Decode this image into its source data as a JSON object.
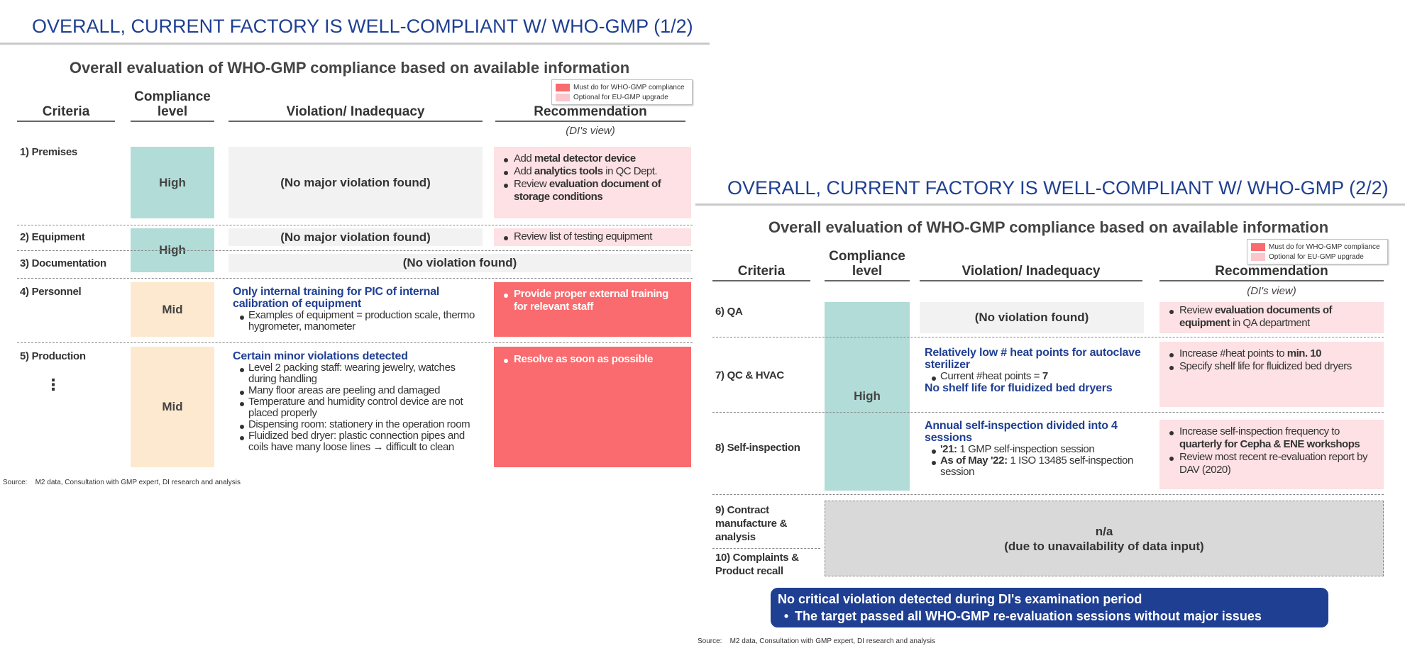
{
  "slide1": {
    "title": "OVERALL, CURRENT FACTORY IS WELL-COMPLIANT W/ WHO-GMP (1/2)",
    "subtitle": "Overall evaluation of WHO-GMP compliance based on available information",
    "legend": {
      "must": "Must do for WHO-GMP compliance",
      "optional": "Optional for EU-GMP upgrade"
    },
    "headers": {
      "criteria": "Criteria",
      "compliance": "Compliance level",
      "violation": "Violation/ Inadequacy",
      "recommendation": "Recommendation"
    },
    "rec_note": "(DI's view)",
    "rows": {
      "premises": {
        "criteria": "1) Premises",
        "level": "High",
        "violation": "(No major violation found)",
        "recs": [
          {
            "pre": "Add ",
            "bold": "metal detector device",
            "post": ""
          },
          {
            "pre": "Add ",
            "bold": "analytics tools",
            "post": " in QC Dept."
          },
          {
            "pre": "Review ",
            "bold": "evaluation document of storage conditions",
            "post": ""
          }
        ]
      },
      "equipment": {
        "criteria": "2) Equipment",
        "violation": "(No major violation found)",
        "rec": "Review list of testing equipment"
      },
      "shared_level": "High",
      "documentation": {
        "criteria": "3) Documentation",
        "violation": "(No violation found)"
      },
      "personnel": {
        "criteria": "4) Personnel",
        "level": "Mid",
        "violation_head": "Only internal training for PIC of internal calibration of equipment",
        "violation_items": [
          "Examples of equipment =  production scale, thermo hygrometer, manometer"
        ],
        "rec": "Provide proper external training for relevant staff"
      },
      "production": {
        "criteria": "5) Production",
        "ellipsis": "⋮",
        "level": "Mid",
        "violation_head": "Certain minor violations detected",
        "violation_items": [
          "Level 2 packing staff: wearing jewelry, watches during handling",
          "Many floor areas are peeling and damaged",
          "Temperature and humidity control device are not placed properly",
          "Dispensing room: stationery in the operation room",
          "Fluidized bed dryer: plastic connection pipes and coils have many loose lines → difficult to clean"
        ],
        "rec": "Resolve as soon as possible"
      }
    },
    "source_label": "Source:",
    "source": "M2 data, Consultation with GMP expert, DI research and analysis"
  },
  "slide2": {
    "title": "OVERALL, CURRENT FACTORY IS WELL-COMPLIANT W/ WHO-GMP (2/2)",
    "subtitle": "Overall evaluation of WHO-GMP compliance based on available information",
    "legend": {
      "must": "Must do for WHO-GMP compliance",
      "optional": "Optional for EU-GMP upgrade"
    },
    "headers": {
      "criteria": "Criteria",
      "compliance": "Compliance level",
      "violation": "Violation/ Inadequacy",
      "recommendation": "Recommendation"
    },
    "rec_note": "(DI's view)",
    "level": "High",
    "rows": {
      "qa": {
        "criteria": "6) QA",
        "violation": "(No violation found)",
        "rec": {
          "pre": "Review ",
          "bold": "evaluation documents of equipment",
          "post": " in QA department"
        }
      },
      "qc": {
        "criteria": "7) QC & HVAC",
        "violation_head": "Relatively low # heat points for autoclave sterilizer",
        "violation_item": {
          "pre": "Current #heat points = ",
          "bold": "7"
        },
        "violation_head2": "No shelf life for fluidized bed dryers",
        "recs": [
          {
            "pre": "Increase #heat points  to ",
            "bold": "min. 10",
            "post": ""
          },
          {
            "pre": "Specify shelf life for fluidized bed dryers",
            "bold": "",
            "post": ""
          }
        ]
      },
      "self": {
        "criteria": "8) Self-inspection",
        "violation_head": "Annual self-inspection divided into 4 sessions",
        "violation_items": [
          {
            "bold": "'21:",
            "post": " 1 GMP self-inspection session"
          },
          {
            "bold": "As of May '22:",
            "post": " 1 ISO 13485 self-inspection session"
          }
        ],
        "recs": [
          {
            "pre": "Increase self-inspection frequency to ",
            "bold": "quarterly for Cepha & ENE workshops",
            "post": ""
          },
          {
            "pre": "Review most recent re-evaluation report by DAV (2020)",
            "bold": "",
            "post": ""
          }
        ]
      },
      "contract": {
        "criteria": "9) Contract manufacture & analysis"
      },
      "complaints": {
        "criteria": "10) Complaints & Product recall"
      },
      "na": {
        "line1": "n/a",
        "line2": "(due to unavailability of data input)"
      }
    },
    "banner": {
      "line1": "No critical violation detected during DI's examination period",
      "line2": "The target passed all WHO-GMP re-evaluation sessions without major issues"
    },
    "source_label": "Source:",
    "source": "M2 data, Consultation with GMP expert, DI research and analysis"
  },
  "colors": {
    "navy": "#1f3f92",
    "teal": "#b2dcd8",
    "peach": "#fde9cf",
    "must_red": "#f96b6e",
    "optional_pink": "#fde1e4",
    "grey": "#f2f2f2"
  }
}
